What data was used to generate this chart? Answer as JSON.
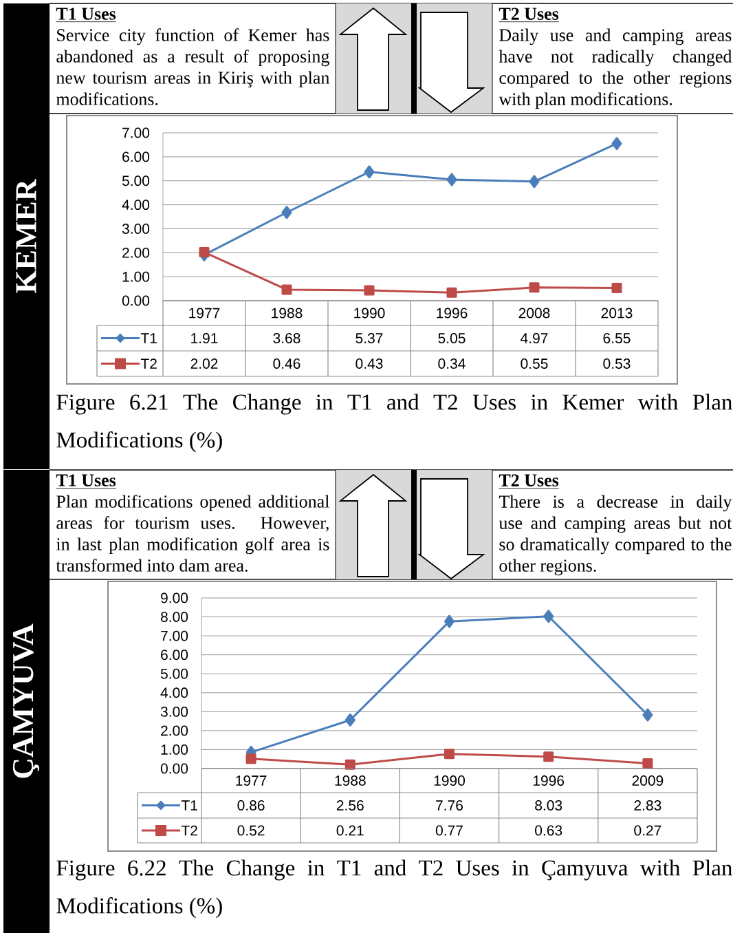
{
  "chart_data": [
    {
      "type": "line",
      "title": "Figure 6.21 The Change in T1 and T2 Uses in Kemer with Plan Modifications (%)",
      "annotations": [
        "KEMER",
        "T1 Uses",
        "Service city function of Kemer has abandoned as a result of proposing new tourism areas in Kiriş with plan modifications.",
        "T2 Uses",
        "Daily use and camping areas have not radically changed compared to the other regions with plan modifications."
      ],
      "categories": [
        "1977",
        "1988",
        "1990",
        "1996",
        "2008",
        "2013"
      ],
      "series": [
        {
          "name": "T1",
          "color": "#4a7ebb",
          "marker": "diamond",
          "values": [
            1.91,
            3.68,
            5.37,
            5.05,
            4.97,
            6.55
          ]
        },
        {
          "name": "T2",
          "color": "#be4b48",
          "marker": "square",
          "values": [
            2.02,
            0.46,
            0.43,
            0.34,
            0.55,
            0.53
          ]
        }
      ],
      "ylim": [
        0,
        7
      ],
      "yticks": [
        {
          "value": 0,
          "label": "0.00"
        },
        {
          "value": 1,
          "label": "1.00"
        },
        {
          "value": 2,
          "label": "2.00"
        },
        {
          "value": 3,
          "label": "3.00"
        },
        {
          "value": 4,
          "label": "4.00"
        },
        {
          "value": 5,
          "label": "5.00"
        },
        {
          "value": 6,
          "label": "6.00"
        },
        {
          "value": 7,
          "label": "7.00"
        }
      ],
      "grid": "y",
      "legend": "bottom left",
      "data_labels": true
    },
    {
      "type": "line",
      "title": "Figure 6.22 The Change in T1 and T2 Uses in Çamyuva with Plan Modifications (%)",
      "annotations": [
        "ÇAMYUVA",
        "T1 Uses",
        "Plan modifications opened additional areas for tourism uses. However, in last plan modification golf area is transformed into dam area.",
        "T2 Uses",
        "There is a decrease in daily use and camping areas but not so dramatically compared to the other regions."
      ],
      "categories": [
        "1977",
        "1988",
        "1990",
        "1996",
        "2009"
      ],
      "series": [
        {
          "name": "T1",
          "color": "#4a7ebb",
          "marker": "diamond",
          "values": [
            0.86,
            2.56,
            7.76,
            8.03,
            2.83
          ]
        },
        {
          "name": "T2",
          "color": "#be4b48",
          "marker": "square",
          "values": [
            0.52,
            0.21,
            0.77,
            0.63,
            0.27
          ]
        }
      ],
      "ylim": [
        0,
        9
      ],
      "yticks": [
        {
          "value": 0,
          "label": "0.00"
        },
        {
          "value": 1,
          "label": "1.00"
        },
        {
          "value": 2,
          "label": "2.00"
        },
        {
          "value": 3,
          "label": "3.00"
        },
        {
          "value": 4,
          "label": "4.00"
        },
        {
          "value": 5,
          "label": "5.00"
        },
        {
          "value": 6,
          "label": "6.00"
        },
        {
          "value": 7,
          "label": "7.00"
        },
        {
          "value": 8,
          "label": "8.00"
        },
        {
          "value": 9,
          "label": "9.00"
        }
      ],
      "grid": "y",
      "legend": "bottom left",
      "data_labels": true
    }
  ]
}
